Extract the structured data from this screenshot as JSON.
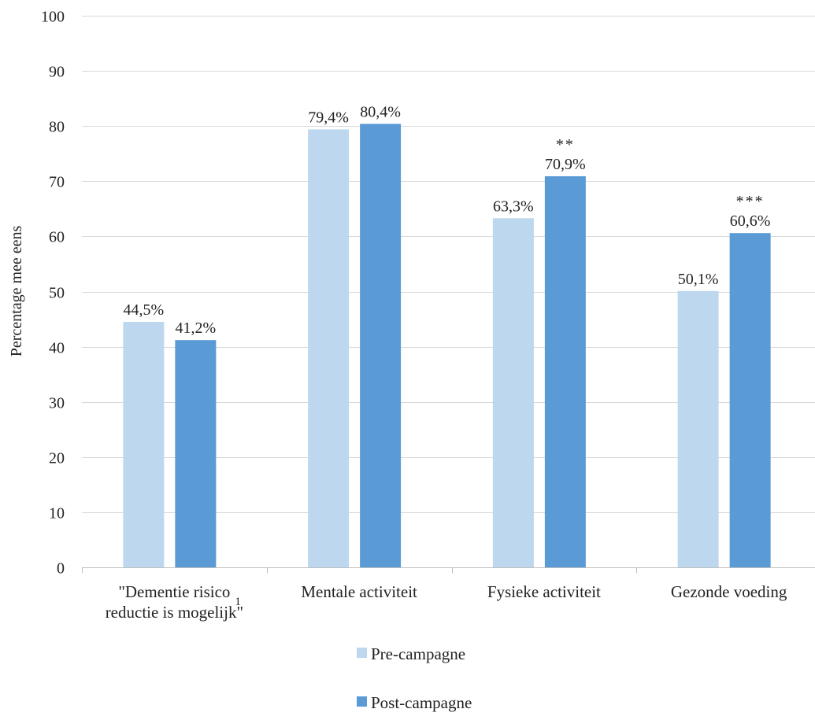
{
  "chart_data": {
    "type": "bar",
    "ylabel": "Percentage mee eens",
    "xlabel": "",
    "ylim": [
      0,
      100
    ],
    "yticks": [
      0,
      10,
      20,
      30,
      40,
      50,
      60,
      70,
      80,
      90,
      100
    ],
    "grid": true,
    "legend_position": "bottom",
    "categories": [
      {
        "lines": [
          "\"Dementie risico",
          "reductie is mogelijk\""
        ],
        "superscript": "1"
      },
      {
        "lines": [
          "Mentale activiteit"
        ],
        "superscript": ""
      },
      {
        "lines": [
          "Fysieke activiteit"
        ],
        "superscript": ""
      },
      {
        "lines": [
          "Gezonde voeding"
        ],
        "superscript": ""
      }
    ],
    "series": [
      {
        "name": "Pre-campagne",
        "color": "#bdd7ee",
        "values": [
          44.5,
          79.4,
          63.3,
          50.1
        ],
        "labels": [
          "44,5%",
          "79,4%",
          "63,3%",
          "50,1%"
        ],
        "significance": [
          "",
          "",
          "",
          ""
        ]
      },
      {
        "name": "Post-campagne",
        "color": "#5b9bd5",
        "values": [
          41.2,
          80.4,
          70.9,
          60.6
        ],
        "labels": [
          "41,2%",
          "80,4%",
          "70,9%",
          "60,6%"
        ],
        "significance": [
          "",
          "",
          "**",
          "***"
        ]
      }
    ]
  }
}
